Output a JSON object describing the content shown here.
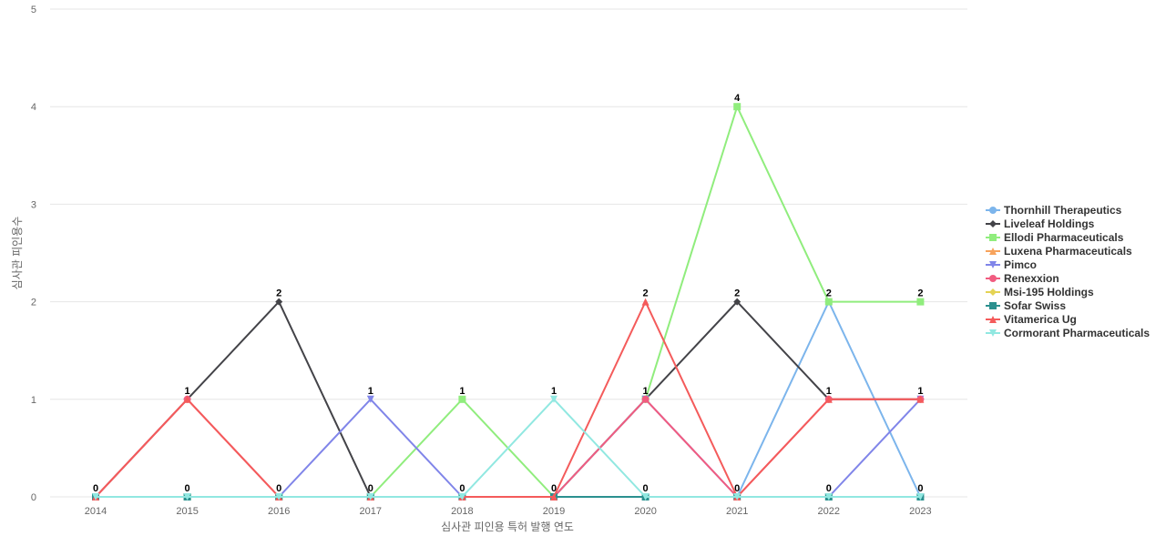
{
  "chart_data": {
    "type": "line",
    "title": "",
    "xlabel": "심사관 피인용 특허 발행 연도",
    "ylabel": "심사관 피인용수",
    "categories": [
      "2014",
      "2015",
      "2016",
      "2017",
      "2018",
      "2019",
      "2020",
      "2021",
      "2022",
      "2023"
    ],
    "ylim": [
      0,
      5
    ],
    "yticks": [
      0,
      1,
      2,
      3,
      4,
      5
    ],
    "grid": true,
    "legend_position": "right",
    "series": [
      {
        "name": "Thornhill Therapeutics",
        "color": "#7cb5ec",
        "marker": "circle",
        "values": [
          0,
          0,
          0,
          0,
          0,
          0,
          0,
          0,
          2,
          0
        ]
      },
      {
        "name": "Liveleaf Holdings",
        "color": "#434348",
        "marker": "diamond",
        "values": [
          0,
          1,
          2,
          0,
          0,
          0,
          1,
          2,
          1,
          1
        ]
      },
      {
        "name": "Ellodi Pharmaceuticals",
        "color": "#90ed7d",
        "marker": "square",
        "values": [
          0,
          0,
          0,
          0,
          1,
          0,
          1,
          4,
          2,
          2
        ]
      },
      {
        "name": "Luxena Pharmaceuticals",
        "color": "#f7a35c",
        "marker": "triangle",
        "values": [
          0,
          0,
          0,
          0,
          0,
          0,
          0,
          0,
          0,
          0
        ]
      },
      {
        "name": "Pimco",
        "color": "#8085e9",
        "marker": "triangle-down",
        "values": [
          0,
          0,
          0,
          1,
          0,
          0,
          1,
          0,
          0,
          1
        ]
      },
      {
        "name": "Renexxion",
        "color": "#f15c80",
        "marker": "circle",
        "values": [
          0,
          1,
          0,
          0,
          0,
          0,
          1,
          0,
          1,
          1
        ]
      },
      {
        "name": "Msi-195 Holdings",
        "color": "#e4d354",
        "marker": "diamond",
        "values": [
          0,
          0,
          0,
          0,
          0,
          0,
          0,
          0,
          0,
          0
        ]
      },
      {
        "name": "Sofar Swiss",
        "color": "#2b908f",
        "marker": "square",
        "values": [
          0,
          0,
          0,
          0,
          0,
          0,
          0,
          0,
          0,
          0
        ]
      },
      {
        "name": "Vitamerica Ug",
        "color": "#f45b5b",
        "marker": "triangle",
        "values": [
          0,
          1,
          0,
          0,
          0,
          0,
          2,
          0,
          1,
          1
        ]
      },
      {
        "name": "Cormorant Pharmaceuticals",
        "color": "#91e8e1",
        "marker": "triangle-down",
        "values": [
          0,
          0,
          0,
          0,
          0,
          1,
          0,
          0,
          0,
          0
        ]
      }
    ],
    "data_labels": [
      {
        "x": "2014",
        "value": 0,
        "text": "0"
      },
      {
        "x": "2015",
        "value": 1,
        "text": "1"
      },
      {
        "x": "2015",
        "value": 0,
        "text": "0"
      },
      {
        "x": "2016",
        "value": 2,
        "text": "2"
      },
      {
        "x": "2016",
        "value": 0,
        "text": "0"
      },
      {
        "x": "2017",
        "value": 1,
        "text": "1"
      },
      {
        "x": "2017",
        "value": 0,
        "text": "0"
      },
      {
        "x": "2018",
        "value": 1,
        "text": "1"
      },
      {
        "x": "2018",
        "value": 0,
        "text": "0"
      },
      {
        "x": "2019",
        "value": 1,
        "text": "1"
      },
      {
        "x": "2019",
        "value": 0,
        "text": "0"
      },
      {
        "x": "2020",
        "value": 2,
        "text": "2"
      },
      {
        "x": "2020",
        "value": 1,
        "text": "1"
      },
      {
        "x": "2020",
        "value": 0,
        "text": "0"
      },
      {
        "x": "2021",
        "value": 4,
        "text": "4"
      },
      {
        "x": "2021",
        "value": 2,
        "text": "2"
      },
      {
        "x": "2021",
        "value": 0,
        "text": "0"
      },
      {
        "x": "2022",
        "value": 2,
        "text": "2"
      },
      {
        "x": "2022",
        "value": 1,
        "text": "1"
      },
      {
        "x": "2022",
        "value": 0,
        "text": "0"
      },
      {
        "x": "2023",
        "value": 2,
        "text": "2"
      },
      {
        "x": "2023",
        "value": 1,
        "text": "1"
      },
      {
        "x": "2023",
        "value": 0,
        "text": "0"
      }
    ]
  }
}
